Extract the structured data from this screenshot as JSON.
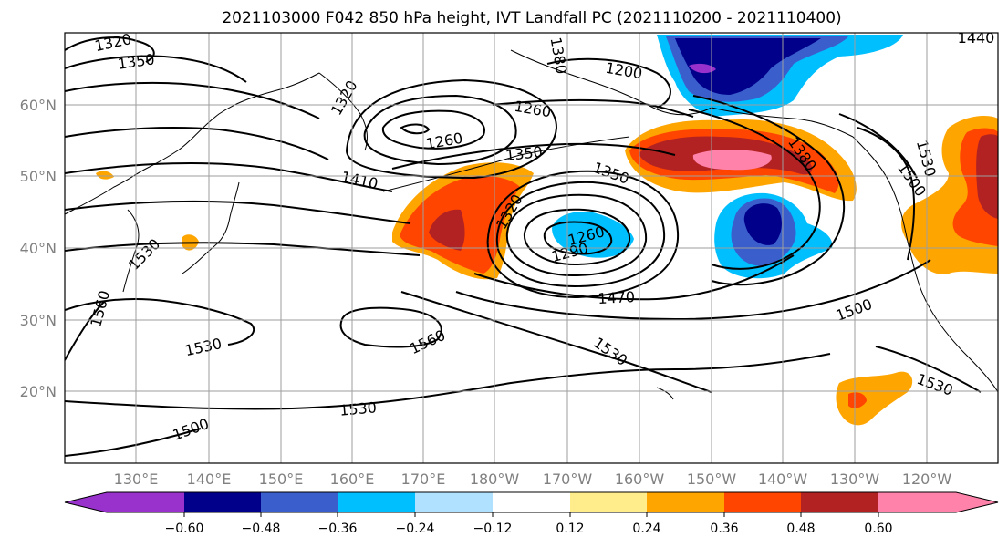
{
  "title": "2021103000 F042 850 hPa height, IVT Landfall PC (2021110200 - 2021110400)",
  "lat_labels": [
    "60°N",
    "50°N",
    "40°N",
    "30°N",
    "20°N"
  ],
  "lon_labels": [
    "130°E",
    "140°E",
    "150°E",
    "160°E",
    "170°E",
    "180°W",
    "170°W",
    "160°W",
    "150°W",
    "140°W",
    "130°W",
    "120°W"
  ],
  "colorbar": {
    "tick_labels": [
      "−0.60",
      "−0.48",
      "−0.36",
      "−0.24",
      "−0.12",
      "0.12",
      "0.24",
      "0.36",
      "0.48",
      "0.60"
    ],
    "colors": [
      "#9932cc",
      "#00008b",
      "#3a5fcd",
      "#00bfff",
      "#b0e2ff",
      "#ffffff",
      "#ffec8b",
      "#ffa500",
      "#ff4500",
      "#b22222",
      "#ff82ab"
    ]
  },
  "contour_labels": [
    "1320",
    "1350",
    "1320",
    "1380",
    "1200",
    "1260",
    "1260",
    "1350",
    "1410",
    "1350",
    "1320",
    "1530",
    "1380",
    "1530",
    "1500",
    "1260",
    "1290",
    "1470",
    "1500",
    "1560",
    "1530",
    "1560",
    "1530",
    "1530",
    "1530",
    "1500",
    "1440"
  ]
}
